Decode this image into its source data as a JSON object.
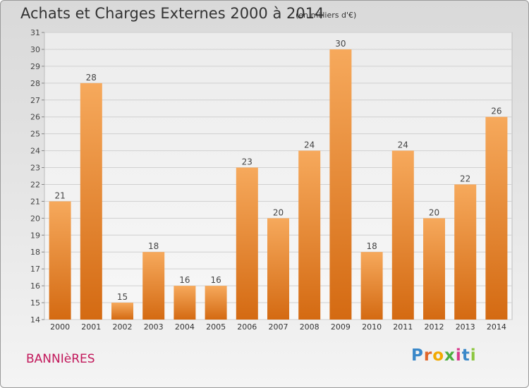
{
  "header": {
    "title": "Achats et Charges Externes 2000 à 2014",
    "subtitle": "(en milliers d'€)"
  },
  "footer": {
    "commune": "BANNIèRES",
    "logo": [
      "P",
      "r",
      "o",
      "x",
      "i",
      "t",
      "i"
    ]
  },
  "chart_data": {
    "type": "bar",
    "title": "Achats et Charges Externes 2000 à 2014",
    "subtitle": "(en milliers d'€)",
    "xlabel": "",
    "ylabel": "",
    "categories": [
      "2000",
      "2001",
      "2002",
      "2003",
      "2004",
      "2005",
      "2006",
      "2007",
      "2008",
      "2009",
      "2010",
      "2011",
      "2012",
      "2013",
      "2014"
    ],
    "values": [
      21,
      28,
      15,
      18,
      16,
      16,
      23,
      20,
      24,
      30,
      18,
      24,
      20,
      22,
      26
    ],
    "ylim": [
      14,
      31
    ],
    "yticks": [
      14,
      15,
      16,
      17,
      18,
      19,
      20,
      21,
      22,
      23,
      24,
      25,
      26,
      27,
      28,
      29,
      30,
      31
    ],
    "grid": true,
    "bar_color_top": "#f6a95c",
    "bar_color_bottom": "#d46a12"
  }
}
